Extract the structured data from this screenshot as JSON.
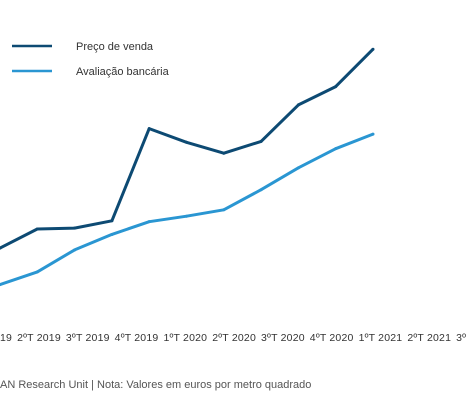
{
  "chart_data": {
    "type": "line",
    "categories": [
      "19",
      "2ºT 2019",
      "3ºT 2019",
      "4ºT 2019",
      "1ºT 2020",
      "2ºT 2020",
      "3ºT 2020",
      "4ºT 2020",
      "1ºT 2021",
      "2ºT 2021",
      "3º"
    ],
    "series": [
      {
        "name": "Preço de venda",
        "color": "#0d4a73",
        "values": [
          1150,
          1255,
          1260,
          1300,
          1805,
          1730,
          1670,
          1735,
          1935,
          2035,
          2240
        ]
      },
      {
        "name": "Avaliação bancária",
        "color": "#2a96d2",
        "values": [
          950,
          1020,
          1140,
          1225,
          1295,
          1325,
          1360,
          1470,
          1590,
          1695,
          1775
        ]
      }
    ],
    "title": "",
    "xlabel": "",
    "ylabel": "",
    "ylim": [
      800,
      2400
    ],
    "grid": false,
    "legend": "top-left"
  },
  "footer": {
    "source": "AN Research Unit | Nota: Valores em euros por metro quadrado"
  }
}
